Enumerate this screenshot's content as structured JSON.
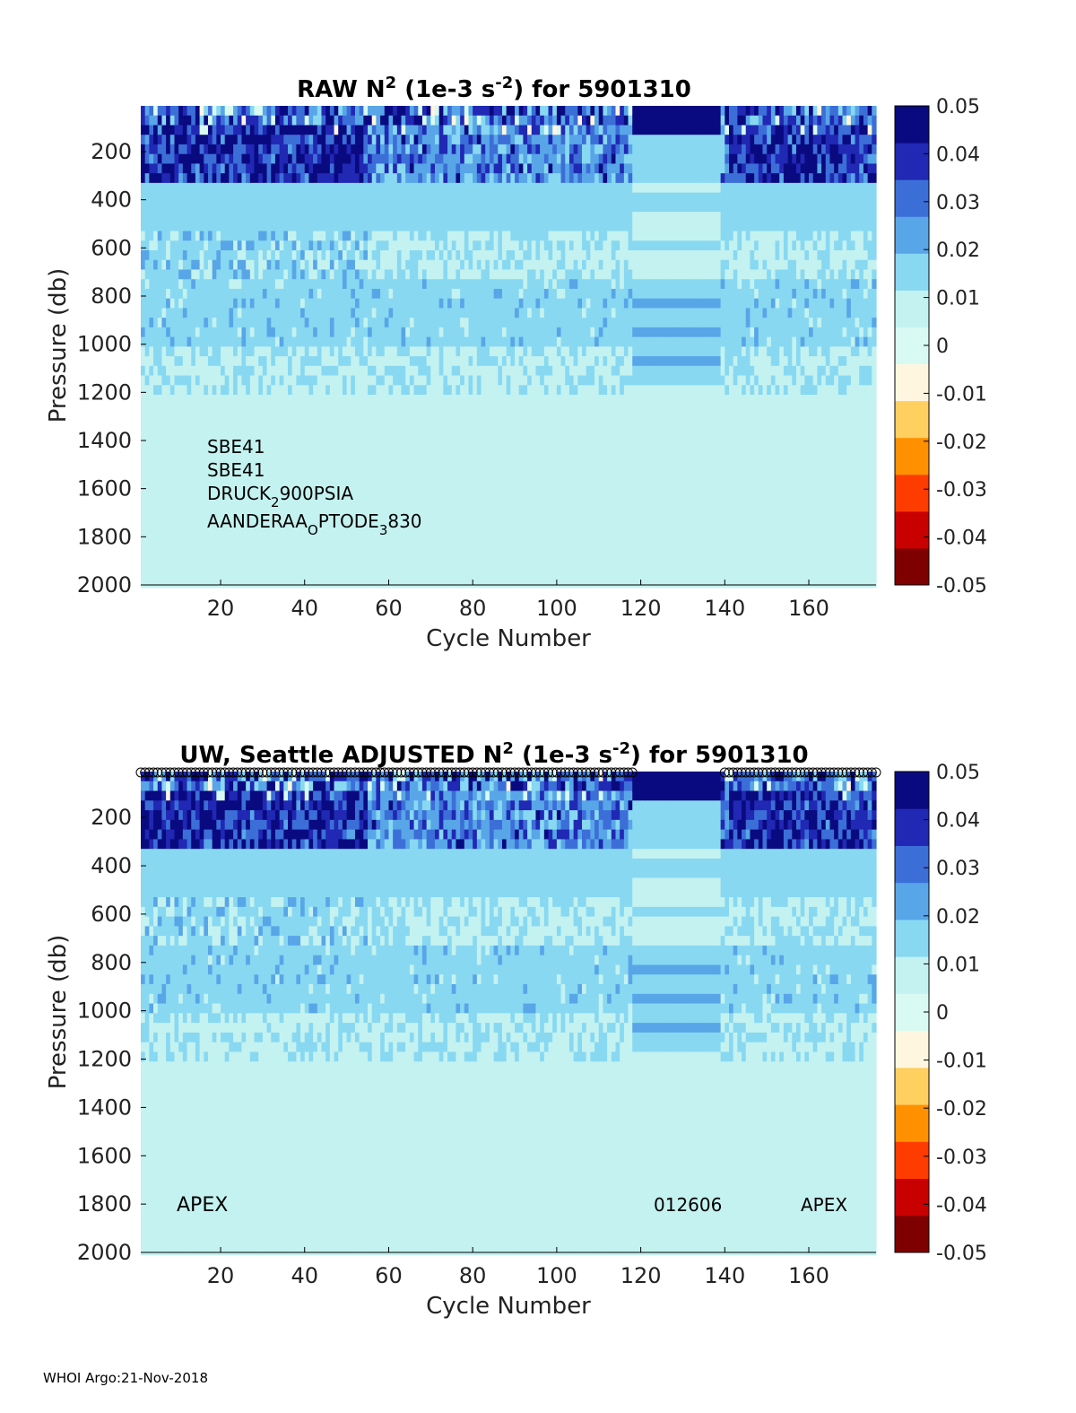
{
  "footer": "WHOI Argo:21-Nov-2018",
  "colormap": [
    "#7f0000",
    "#c80000",
    "#ff3c00",
    "#ff9000",
    "#ffd060",
    "#fff6e0",
    "#d8faf2",
    "#c4f2f0",
    "#88d8f2",
    "#58a6e8",
    "#3c6ed8",
    "#2028b4",
    "#0a0a80"
  ],
  "chart_data": [
    {
      "type": "heatmap",
      "title": "RAW N",
      "title_sup": "2",
      "title_units": " (1e-3 s",
      "title_units_sup": "-2",
      "title_tail": ") for 5901310",
      "xlabel": "Cycle Number",
      "ylabel": "Pressure (db)",
      "xlim": [
        1,
        176
      ],
      "ylim": [
        2000,
        10
      ],
      "xticks": [
        20,
        40,
        60,
        80,
        100,
        120,
        140,
        160
      ],
      "yticks": [
        200,
        400,
        600,
        800,
        1000,
        1200,
        1400,
        1600,
        1800,
        2000
      ],
      "colorbar": {
        "min": -0.05,
        "max": 0.05,
        "ticks": [
          "0.05",
          "0.04",
          "0.03",
          "0.02",
          "0.01",
          "0",
          "-0.01",
          "-0.02",
          "-0.03",
          "-0.04",
          "-0.05"
        ]
      },
      "annotations": {
        "lines": [
          {
            "main": "SBE41"
          },
          {
            "main": "SBE41"
          },
          {
            "main": "DRUCK",
            "sub": "2",
            "rest": "900PSIA"
          },
          {
            "main": "AANDERAA",
            "sub": "O",
            "rest": "PTODE",
            "sub2": "3",
            "rest2": "830"
          }
        ]
      },
      "gaps": [
        [
          118,
          139
        ]
      ],
      "surface_layer_n2": 0.05,
      "thermocline_n2": 0.045,
      "intermediate_max_n2": 0.02,
      "deep_n2": 0.006
    },
    {
      "type": "heatmap",
      "title": "UW, Seattle  ADJUSTED N",
      "title_sup": "2",
      "title_units": " (1e-3 s",
      "title_units_sup": "-2",
      "title_tail": ") for 5901310",
      "xlabel": "Cycle Number",
      "ylabel": "Pressure (db)",
      "xlim": [
        1,
        176
      ],
      "ylim": [
        2000,
        10
      ],
      "xticks": [
        20,
        40,
        60,
        80,
        100,
        120,
        140,
        160
      ],
      "yticks": [
        200,
        400,
        600,
        800,
        1000,
        1200,
        1400,
        1600,
        1800,
        2000
      ],
      "colorbar": {
        "min": -0.05,
        "max": 0.05,
        "ticks": [
          "0.05",
          "0.04",
          "0.03",
          "0.02",
          "0.01",
          "0",
          "-0.01",
          "-0.02",
          "-0.03",
          "-0.04",
          "-0.05"
        ]
      },
      "labels": {
        "left": "APEX",
        "middle": "012606",
        "right": "APEX"
      },
      "qc_markers": "circles along top for each cycle",
      "gaps": [
        [
          118,
          139
        ]
      ],
      "surface_layer_n2": 0.05,
      "thermocline_n2": 0.045,
      "intermediate_max_n2": 0.02,
      "deep_n2": 0.006
    }
  ]
}
